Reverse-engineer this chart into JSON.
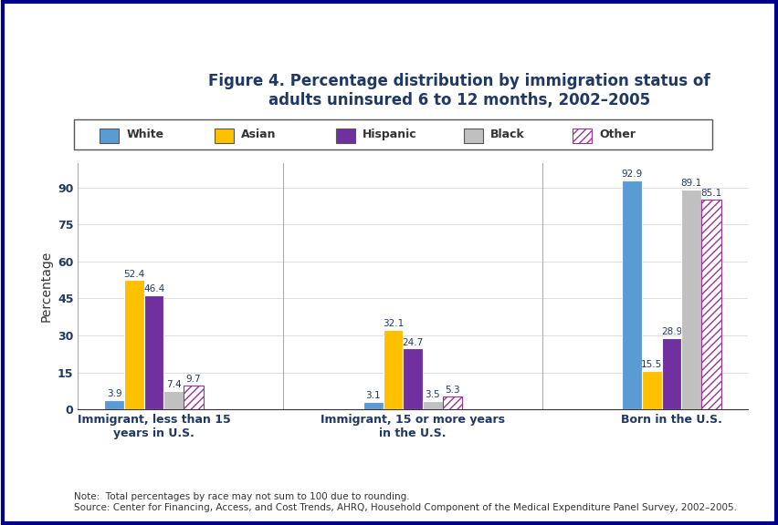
{
  "title_line1": "Figure 4. Percentage distribution by immigration status of",
  "title_line2": "adults uninsured 6 to 12 months, 2002–2005",
  "ylabel": "Percentage",
  "categories": [
    "Immigrant, less than 15\nyears in U.S.",
    "Immigrant, 15 or more years\nin the U.S.",
    "Born in the U.S."
  ],
  "series_names": [
    "White",
    "Asian",
    "Hispanic",
    "Black",
    "Other"
  ],
  "series_values": {
    "White": [
      3.9,
      3.1,
      92.9
    ],
    "Asian": [
      52.4,
      32.1,
      15.5
    ],
    "Hispanic": [
      46.4,
      24.7,
      28.9
    ],
    "Black": [
      7.4,
      3.5,
      89.1
    ],
    "Other": [
      9.7,
      5.3,
      85.1
    ]
  },
  "bar_colors": {
    "White": "#5B9BD5",
    "Asian": "#FFC000",
    "Hispanic": "#7030A0",
    "Black": "#C0C0C0",
    "Other_face": "#FFFFFF",
    "Other_hatch": "#993399"
  },
  "ylim": [
    0,
    100
  ],
  "yticks": [
    0,
    15,
    30,
    45,
    60,
    75,
    90
  ],
  "note": "Note:  Total percentages by race may not sum to 100 due to rounding.\nSource: Center for Financing, Access, and Cost Trends, AHRQ, Household Component of the Medical Expenditure Panel Survey, 2002–2005.",
  "title_color": "#1F3864",
  "label_color": "#1F3864",
  "border_color": "#00008B",
  "bar_width": 0.13,
  "group_positions": [
    0.22,
    0.55,
    0.855
  ]
}
